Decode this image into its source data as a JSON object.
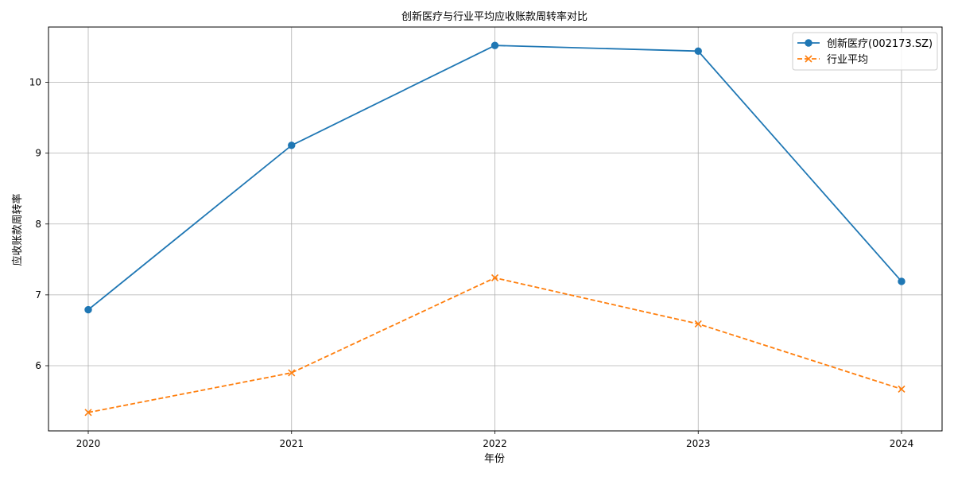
{
  "chart_data": {
    "type": "line",
    "title": "创新医疗与行业平均应收账款周转率对比",
    "xlabel": "年份",
    "ylabel": "应收账款周转率",
    "categories": [
      "2020",
      "2021",
      "2022",
      "2023",
      "2024"
    ],
    "yticks": [
      "6",
      "7",
      "8",
      "9",
      "10"
    ],
    "ylim": [
      5.08,
      10.78
    ],
    "grid": true,
    "legend_position": "top-right",
    "series": [
      {
        "name": "创新医疗(002173.SZ)",
        "values": [
          6.79,
          9.11,
          10.52,
          10.44,
          7.19
        ],
        "color": "#1f77b4",
        "line_style": "solid",
        "marker": "circle"
      },
      {
        "name": "行业平均",
        "values": [
          5.34,
          5.9,
          7.24,
          6.59,
          5.67
        ],
        "color": "#ff7f0e",
        "line_style": "dashed",
        "marker": "x"
      }
    ]
  }
}
